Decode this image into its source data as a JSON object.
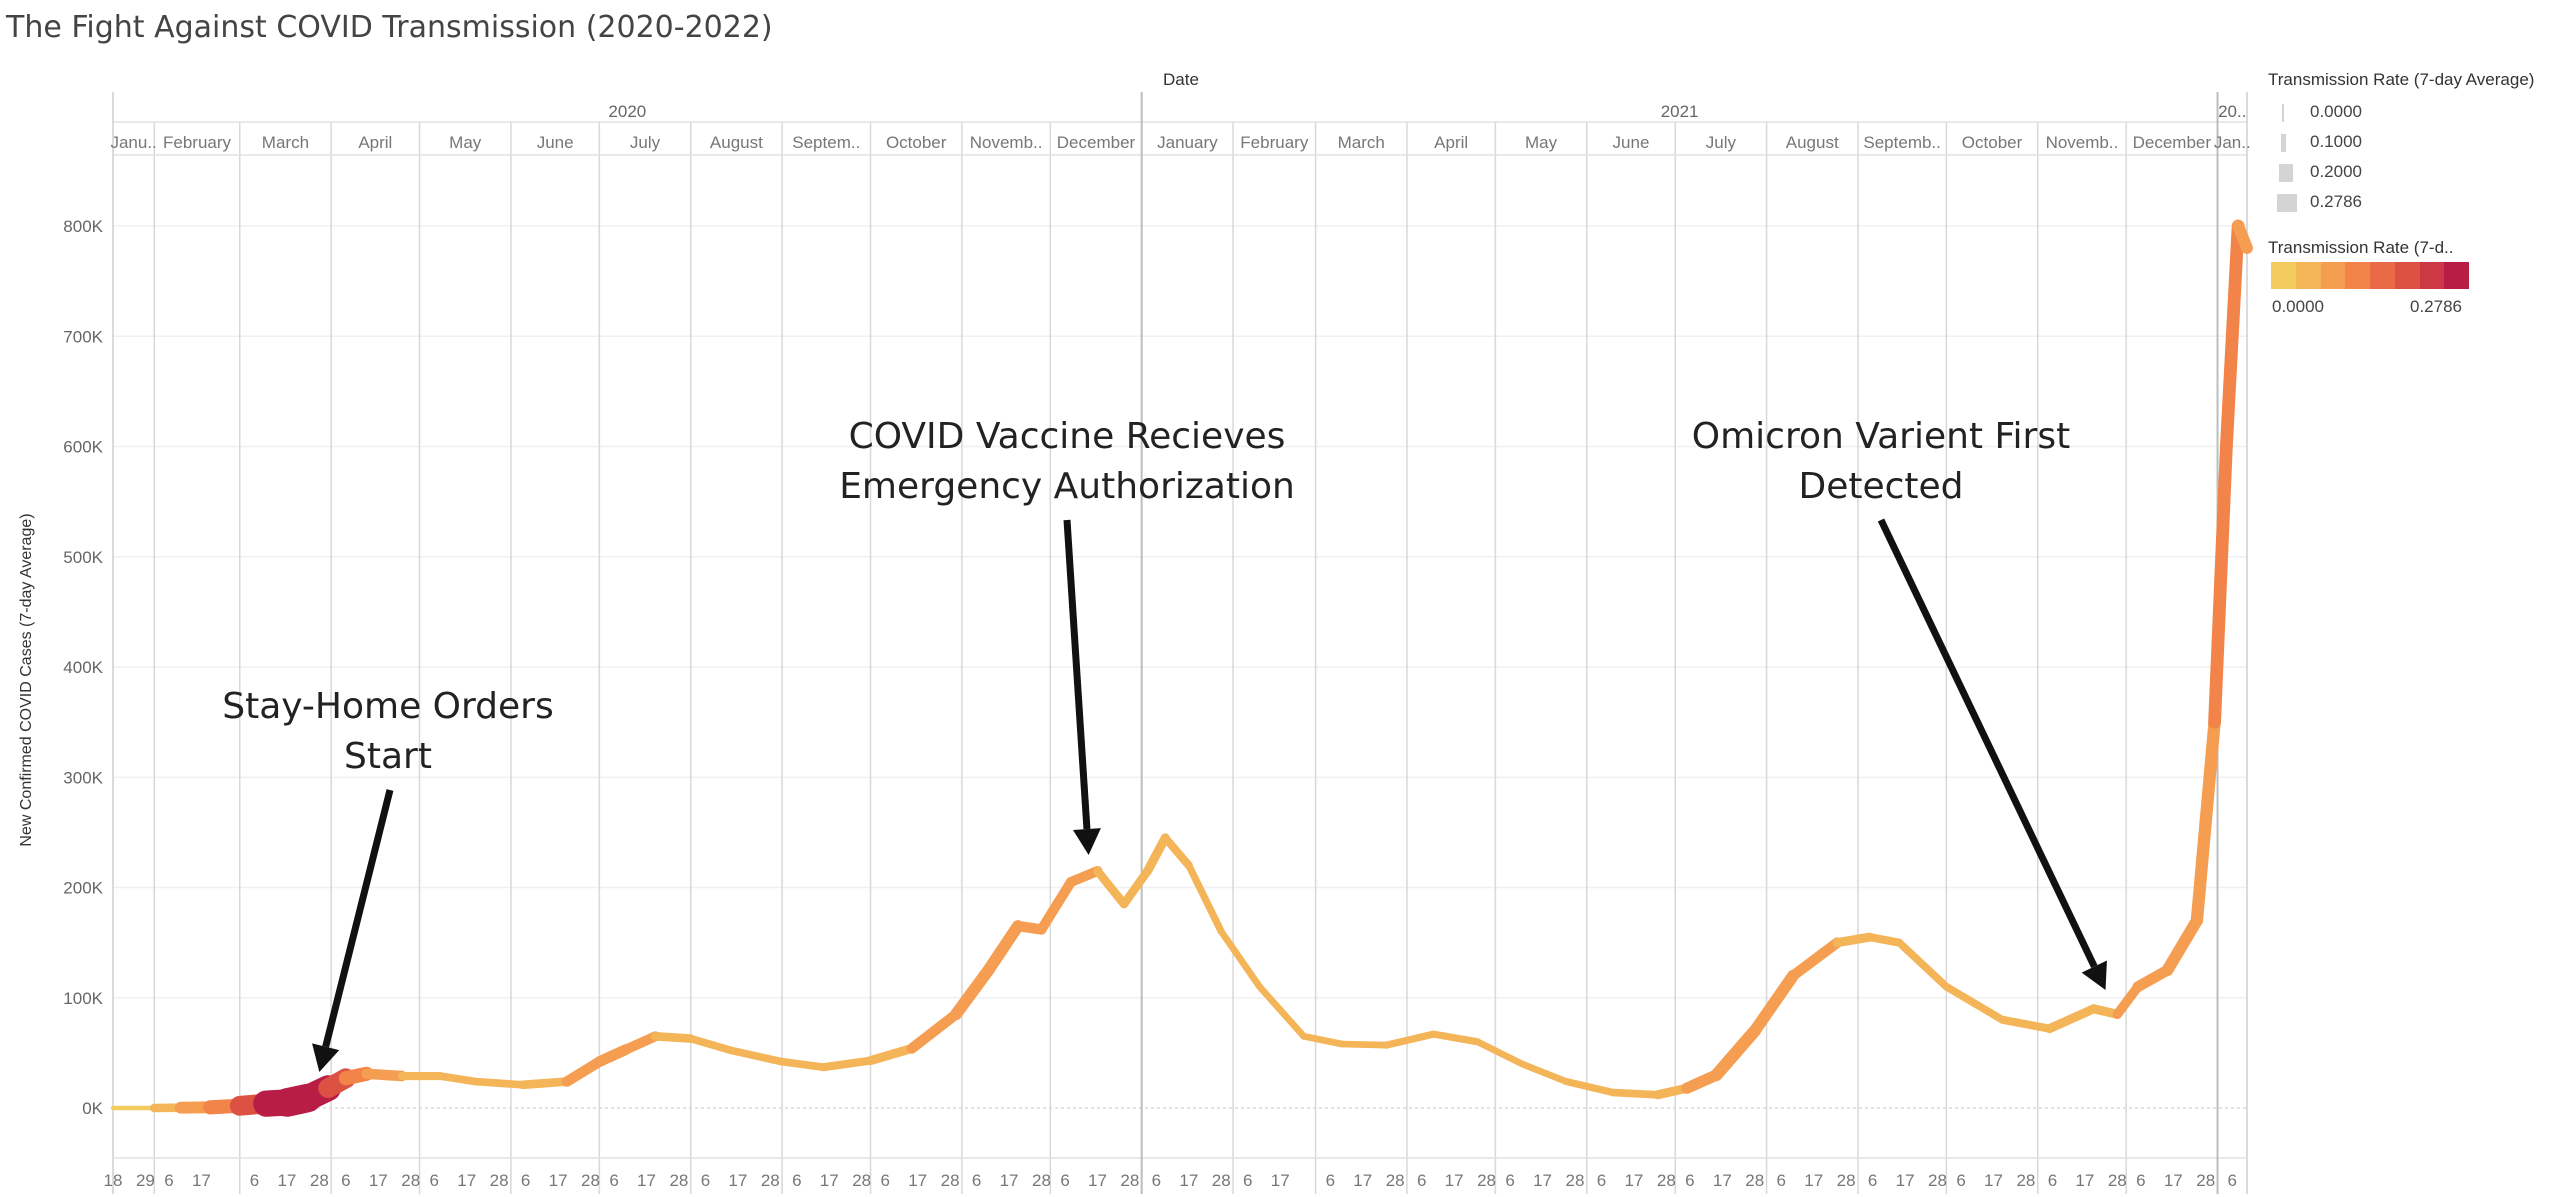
{
  "title": "The Fight Against COVID Transmission (2020-2022)",
  "colors": {
    "ramp": [
      "#f2cd5d",
      "#f4b458",
      "#f59d50",
      "#f28449",
      "#e96a44",
      "#dc5142",
      "#cc3844",
      "#b81e45"
    ],
    "line_base": "#f6b15c",
    "arrow": "#111111"
  },
  "legend": {
    "size_title": "Transmission Rate (7-day Average)",
    "size_items": [
      "0.0000",
      "0.1000",
      "0.2000",
      "0.2786"
    ],
    "color_title": "Transmission Rate (7-d..",
    "color_min": "0.0000",
    "color_max": "0.2786"
  },
  "annotations": [
    {
      "line1": "Stay-Home Orders",
      "line2": "Start",
      "target_date": "2020-03-28"
    },
    {
      "line1": "COVID Vaccine Recieves",
      "line2": "Emergency Authorization",
      "target_date": "2020-12-14"
    },
    {
      "line1": "Omicron Varient First",
      "line2": "Detected",
      "target_date": "2021-11-24"
    }
  ],
  "chart_data": {
    "type": "line",
    "title": "The Fight Against COVID Transmission (2020-2022)",
    "xlabel": "Date",
    "ylabel": "New Confirmed COVID Cases (7-day Average)",
    "x_range": [
      "2020-01-18",
      "2022-01-11"
    ],
    "ylim": [
      -50000,
      860000
    ],
    "y_ticks": [
      0,
      100000,
      200000,
      300000,
      400000,
      500000,
      600000,
      700000,
      800000
    ],
    "y_tick_labels": [
      "0K",
      "100K",
      "200K",
      "300K",
      "400K",
      "500K",
      "600K",
      "700K",
      "800K"
    ],
    "grid": true,
    "years": [
      {
        "label": "2020",
        "start": "2020-01-18",
        "end": "2021-01-01"
      },
      {
        "label": "2021",
        "start": "2021-01-01",
        "end": "2022-01-01"
      },
      {
        "label": "20..",
        "start": "2022-01-01",
        "end": "2022-01-11"
      }
    ],
    "months": [
      {
        "label": "Janu..",
        "start": "2020-01-18",
        "end": "2020-02-01"
      },
      {
        "label": "February",
        "start": "2020-02-01",
        "end": "2020-03-01"
      },
      {
        "label": "March",
        "start": "2020-03-01",
        "end": "2020-04-01"
      },
      {
        "label": "April",
        "start": "2020-04-01",
        "end": "2020-05-01"
      },
      {
        "label": "May",
        "start": "2020-05-01",
        "end": "2020-06-01"
      },
      {
        "label": "June",
        "start": "2020-06-01",
        "end": "2020-07-01"
      },
      {
        "label": "July",
        "start": "2020-07-01",
        "end": "2020-08-01"
      },
      {
        "label": "August",
        "start": "2020-08-01",
        "end": "2020-09-01"
      },
      {
        "label": "Septem..",
        "start": "2020-09-01",
        "end": "2020-10-01"
      },
      {
        "label": "October",
        "start": "2020-10-01",
        "end": "2020-11-01"
      },
      {
        "label": "Novemb..",
        "start": "2020-11-01",
        "end": "2020-12-01"
      },
      {
        "label": "December",
        "start": "2020-12-01",
        "end": "2021-01-01"
      },
      {
        "label": "January",
        "start": "2021-01-01",
        "end": "2021-02-01"
      },
      {
        "label": "February",
        "start": "2021-02-01",
        "end": "2021-03-01"
      },
      {
        "label": "March",
        "start": "2021-03-01",
        "end": "2021-04-01"
      },
      {
        "label": "April",
        "start": "2021-04-01",
        "end": "2021-05-01"
      },
      {
        "label": "May",
        "start": "2021-05-01",
        "end": "2021-06-01"
      },
      {
        "label": "June",
        "start": "2021-06-01",
        "end": "2021-07-01"
      },
      {
        "label": "July",
        "start": "2021-07-01",
        "end": "2021-08-01"
      },
      {
        "label": "August",
        "start": "2021-08-01",
        "end": "2021-09-01"
      },
      {
        "label": "Septemb..",
        "start": "2021-09-01",
        "end": "2021-10-01"
      },
      {
        "label": "October",
        "start": "2021-10-01",
        "end": "2021-11-01"
      },
      {
        "label": "Novemb..",
        "start": "2021-11-01",
        "end": "2021-12-01"
      },
      {
        "label": "December",
        "start": "2021-12-01",
        "end": "2022-01-01"
      },
      {
        "label": "Jan..",
        "start": "2022-01-01",
        "end": "2022-01-11"
      }
    ],
    "day_ticks": [
      {
        "date": "2020-01-18",
        "label": "18"
      },
      {
        "date": "2020-01-29",
        "label": "29"
      },
      {
        "date": "2020-02-06",
        "label": "6"
      },
      {
        "date": "2020-02-17",
        "label": "17"
      },
      {
        "date": "2020-03-06",
        "label": "6"
      },
      {
        "date": "2020-03-17",
        "label": "17"
      },
      {
        "date": "2020-03-28",
        "label": "28"
      },
      {
        "date": "2020-04-06",
        "label": "6"
      },
      {
        "date": "2020-04-17",
        "label": "17"
      },
      {
        "date": "2020-04-28",
        "label": "28"
      },
      {
        "date": "2020-05-06",
        "label": "6"
      },
      {
        "date": "2020-05-17",
        "label": "17"
      },
      {
        "date": "2020-05-28",
        "label": "28"
      },
      {
        "date": "2020-06-06",
        "label": "6"
      },
      {
        "date": "2020-06-17",
        "label": "17"
      },
      {
        "date": "2020-06-28",
        "label": "28"
      },
      {
        "date": "2020-07-06",
        "label": "6"
      },
      {
        "date": "2020-07-17",
        "label": "17"
      },
      {
        "date": "2020-07-28",
        "label": "28"
      },
      {
        "date": "2020-08-06",
        "label": "6"
      },
      {
        "date": "2020-08-17",
        "label": "17"
      },
      {
        "date": "2020-08-28",
        "label": "28"
      },
      {
        "date": "2020-09-06",
        "label": "6"
      },
      {
        "date": "2020-09-17",
        "label": "17"
      },
      {
        "date": "2020-09-28",
        "label": "28"
      },
      {
        "date": "2020-10-06",
        "label": "6"
      },
      {
        "date": "2020-10-17",
        "label": "17"
      },
      {
        "date": "2020-10-28",
        "label": "28"
      },
      {
        "date": "2020-11-06",
        "label": "6"
      },
      {
        "date": "2020-11-17",
        "label": "17"
      },
      {
        "date": "2020-11-28",
        "label": "28"
      },
      {
        "date": "2020-12-06",
        "label": "6"
      },
      {
        "date": "2020-12-17",
        "label": "17"
      },
      {
        "date": "2020-12-28",
        "label": "28"
      },
      {
        "date": "2021-01-06",
        "label": "6"
      },
      {
        "date": "2021-01-17",
        "label": "17"
      },
      {
        "date": "2021-01-28",
        "label": "28"
      },
      {
        "date": "2021-02-06",
        "label": "6"
      },
      {
        "date": "2021-02-17",
        "label": "17"
      },
      {
        "date": "2021-03-06",
        "label": "6"
      },
      {
        "date": "2021-03-17",
        "label": "17"
      },
      {
        "date": "2021-03-28",
        "label": "28"
      },
      {
        "date": "2021-04-06",
        "label": "6"
      },
      {
        "date": "2021-04-17",
        "label": "17"
      },
      {
        "date": "2021-04-28",
        "label": "28"
      },
      {
        "date": "2021-05-06",
        "label": "6"
      },
      {
        "date": "2021-05-17",
        "label": "17"
      },
      {
        "date": "2021-05-28",
        "label": "28"
      },
      {
        "date": "2021-06-06",
        "label": "6"
      },
      {
        "date": "2021-06-17",
        "label": "17"
      },
      {
        "date": "2021-06-28",
        "label": "28"
      },
      {
        "date": "2021-07-06",
        "label": "6"
      },
      {
        "date": "2021-07-17",
        "label": "17"
      },
      {
        "date": "2021-07-28",
        "label": "28"
      },
      {
        "date": "2021-08-06",
        "label": "6"
      },
      {
        "date": "2021-08-17",
        "label": "17"
      },
      {
        "date": "2021-08-28",
        "label": "28"
      },
      {
        "date": "2021-09-06",
        "label": "6"
      },
      {
        "date": "2021-09-17",
        "label": "17"
      },
      {
        "date": "2021-09-28",
        "label": "28"
      },
      {
        "date": "2021-10-06",
        "label": "6"
      },
      {
        "date": "2021-10-17",
        "label": "17"
      },
      {
        "date": "2021-10-28",
        "label": "28"
      },
      {
        "date": "2021-11-06",
        "label": "6"
      },
      {
        "date": "2021-11-17",
        "label": "17"
      },
      {
        "date": "2021-11-28",
        "label": "28"
      },
      {
        "date": "2021-12-06",
        "label": "6"
      },
      {
        "date": "2021-12-17",
        "label": "17"
      },
      {
        "date": "2021-12-28",
        "label": "28"
      },
      {
        "date": "2022-01-06",
        "label": "6"
      }
    ],
    "series": [
      {
        "points": [
          {
            "date": "2020-01-18",
            "cases": 0,
            "rate": 0.0
          },
          {
            "date": "2020-02-01",
            "cases": 0,
            "rate": 0.03
          },
          {
            "date": "2020-02-10",
            "cases": 300,
            "rate": 0.09
          },
          {
            "date": "2020-02-20",
            "cases": 600,
            "rate": 0.1
          },
          {
            "date": "2020-03-01",
            "cases": 2000,
            "rate": 0.14
          },
          {
            "date": "2020-03-10",
            "cases": 4000,
            "rate": 0.22
          },
          {
            "date": "2020-03-17",
            "cases": 5000,
            "rate": 0.2786
          },
          {
            "date": "2020-03-24",
            "cases": 9000,
            "rate": 0.27
          },
          {
            "date": "2020-03-31",
            "cases": 18000,
            "rate": 0.22
          },
          {
            "date": "2020-04-06",
            "cases": 27000,
            "rate": 0.14
          },
          {
            "date": "2020-04-13",
            "cases": 31000,
            "rate": 0.1
          },
          {
            "date": "2020-04-25",
            "cases": 29000,
            "rate": 0.06
          },
          {
            "date": "2020-05-08",
            "cases": 29000,
            "rate": 0.05
          },
          {
            "date": "2020-05-20",
            "cases": 24000,
            "rate": 0.05
          },
          {
            "date": "2020-06-05",
            "cases": 21000,
            "rate": 0.05
          },
          {
            "date": "2020-06-20",
            "cases": 24000,
            "rate": 0.07
          },
          {
            "date": "2020-07-01",
            "cases": 42000,
            "rate": 0.09
          },
          {
            "date": "2020-07-10",
            "cases": 53000,
            "rate": 0.08
          },
          {
            "date": "2020-07-20",
            "cases": 65000,
            "rate": 0.07
          },
          {
            "date": "2020-08-01",
            "cases": 63000,
            "rate": 0.05
          },
          {
            "date": "2020-08-15",
            "cases": 52000,
            "rate": 0.05
          },
          {
            "date": "2020-09-01",
            "cases": 42000,
            "rate": 0.05
          },
          {
            "date": "2020-09-15",
            "cases": 37000,
            "rate": 0.05
          },
          {
            "date": "2020-10-01",
            "cases": 43000,
            "rate": 0.06
          },
          {
            "date": "2020-10-15",
            "cases": 54000,
            "rate": 0.07
          },
          {
            "date": "2020-10-30",
            "cases": 85000,
            "rate": 0.09
          },
          {
            "date": "2020-11-10",
            "cases": 125000,
            "rate": 0.1
          },
          {
            "date": "2020-11-20",
            "cases": 165000,
            "rate": 0.09
          },
          {
            "date": "2020-11-28",
            "cases": 162000,
            "rate": 0.07
          },
          {
            "date": "2020-12-08",
            "cases": 205000,
            "rate": 0.08
          },
          {
            "date": "2020-12-17",
            "cases": 215000,
            "rate": 0.07
          },
          {
            "date": "2020-12-26",
            "cases": 185000,
            "rate": 0.05
          },
          {
            "date": "2021-01-03",
            "cases": 215000,
            "rate": 0.07
          },
          {
            "date": "2021-01-09",
            "cases": 245000,
            "rate": 0.06
          },
          {
            "date": "2021-01-17",
            "cases": 220000,
            "rate": 0.05
          },
          {
            "date": "2021-01-28",
            "cases": 160000,
            "rate": 0.04
          },
          {
            "date": "2021-02-10",
            "cases": 110000,
            "rate": 0.04
          },
          {
            "date": "2021-02-25",
            "cases": 65000,
            "rate": 0.04
          },
          {
            "date": "2021-03-10",
            "cases": 58000,
            "rate": 0.04
          },
          {
            "date": "2021-03-25",
            "cases": 57000,
            "rate": 0.04
          },
          {
            "date": "2021-04-10",
            "cases": 67000,
            "rate": 0.05
          },
          {
            "date": "2021-04-25",
            "cases": 60000,
            "rate": 0.04
          },
          {
            "date": "2021-05-10",
            "cases": 40000,
            "rate": 0.04
          },
          {
            "date": "2021-05-25",
            "cases": 24000,
            "rate": 0.04
          },
          {
            "date": "2021-06-10",
            "cases": 14000,
            "rate": 0.05
          },
          {
            "date": "2021-06-25",
            "cases": 12000,
            "rate": 0.05
          },
          {
            "date": "2021-07-05",
            "cases": 18000,
            "rate": 0.08
          },
          {
            "date": "2021-07-15",
            "cases": 30000,
            "rate": 0.1
          },
          {
            "date": "2021-07-28",
            "cases": 70000,
            "rate": 0.1
          },
          {
            "date": "2021-08-10",
            "cases": 120000,
            "rate": 0.09
          },
          {
            "date": "2021-08-25",
            "cases": 150000,
            "rate": 0.07
          },
          {
            "date": "2021-09-05",
            "cases": 155000,
            "rate": 0.06
          },
          {
            "date": "2021-09-15",
            "cases": 150000,
            "rate": 0.05
          },
          {
            "date": "2021-10-01",
            "cases": 110000,
            "rate": 0.05
          },
          {
            "date": "2021-10-20",
            "cases": 80000,
            "rate": 0.05
          },
          {
            "date": "2021-11-05",
            "cases": 72000,
            "rate": 0.06
          },
          {
            "date": "2021-11-20",
            "cases": 90000,
            "rate": 0.07
          },
          {
            "date": "2021-11-28",
            "cases": 85000,
            "rate": 0.06
          },
          {
            "date": "2021-12-05",
            "cases": 110000,
            "rate": 0.08
          },
          {
            "date": "2021-12-15",
            "cases": 125000,
            "rate": 0.09
          },
          {
            "date": "2021-12-25",
            "cases": 170000,
            "rate": 0.1
          },
          {
            "date": "2021-12-31",
            "cases": 350000,
            "rate": 0.1
          },
          {
            "date": "2022-01-04",
            "cases": 600000,
            "rate": 0.11
          },
          {
            "date": "2022-01-08",
            "cases": 800000,
            "rate": 0.1
          },
          {
            "date": "2022-01-11",
            "cases": 780000,
            "rate": 0.09
          }
        ]
      }
    ]
  }
}
